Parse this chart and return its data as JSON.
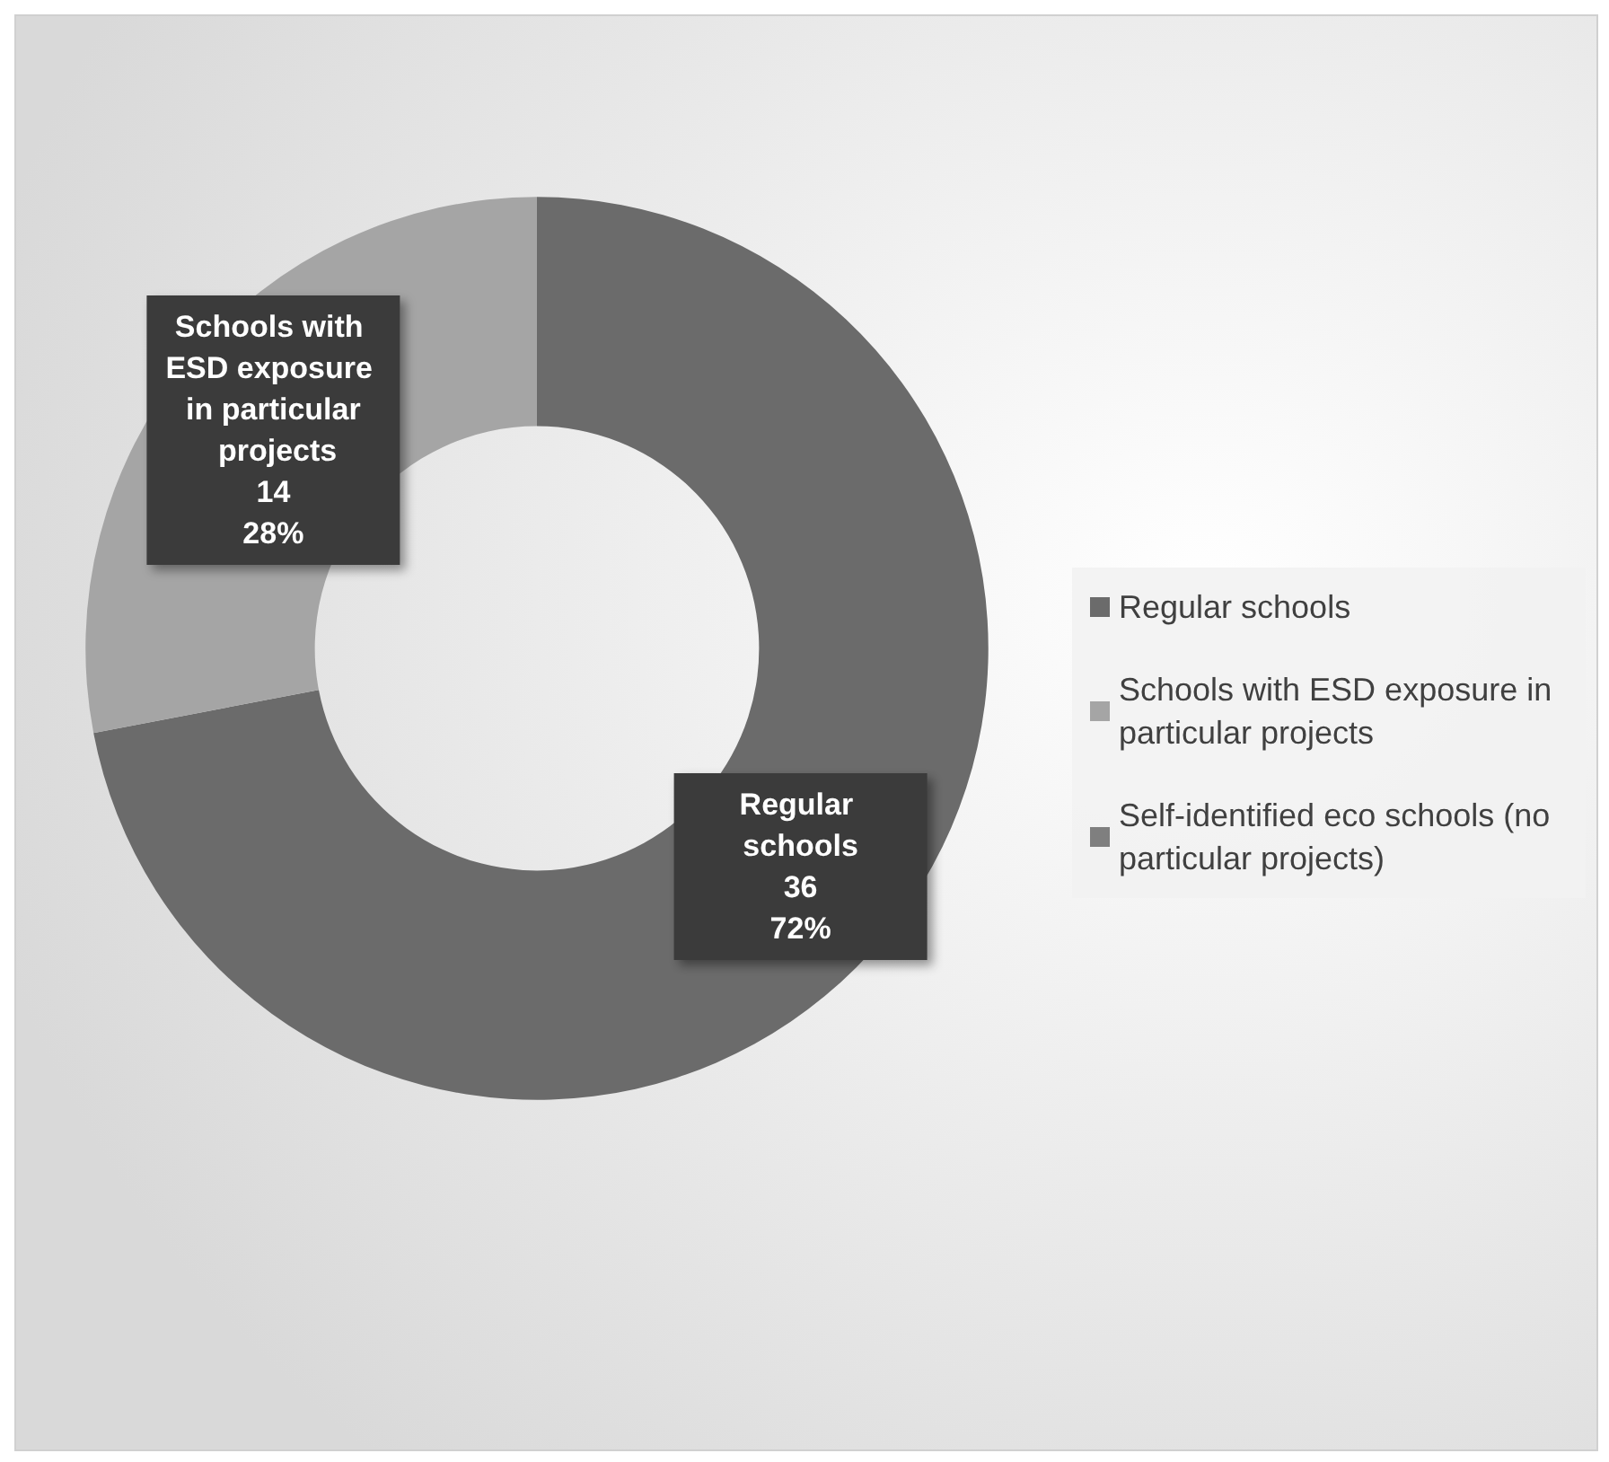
{
  "chart_data": {
    "type": "donut",
    "categories": [
      "Regular schools",
      "Schools with ESD exposure in particular projects",
      "Self-identified eco schools (no particular projects)"
    ],
    "values": [
      36,
      14,
      0
    ],
    "colors": [
      "#6b6b6b",
      "#a5a5a5",
      "#7f7f7f"
    ],
    "value_labels": [
      "36\n72%",
      "14\n28%",
      null
    ],
    "legend": "right"
  }
}
